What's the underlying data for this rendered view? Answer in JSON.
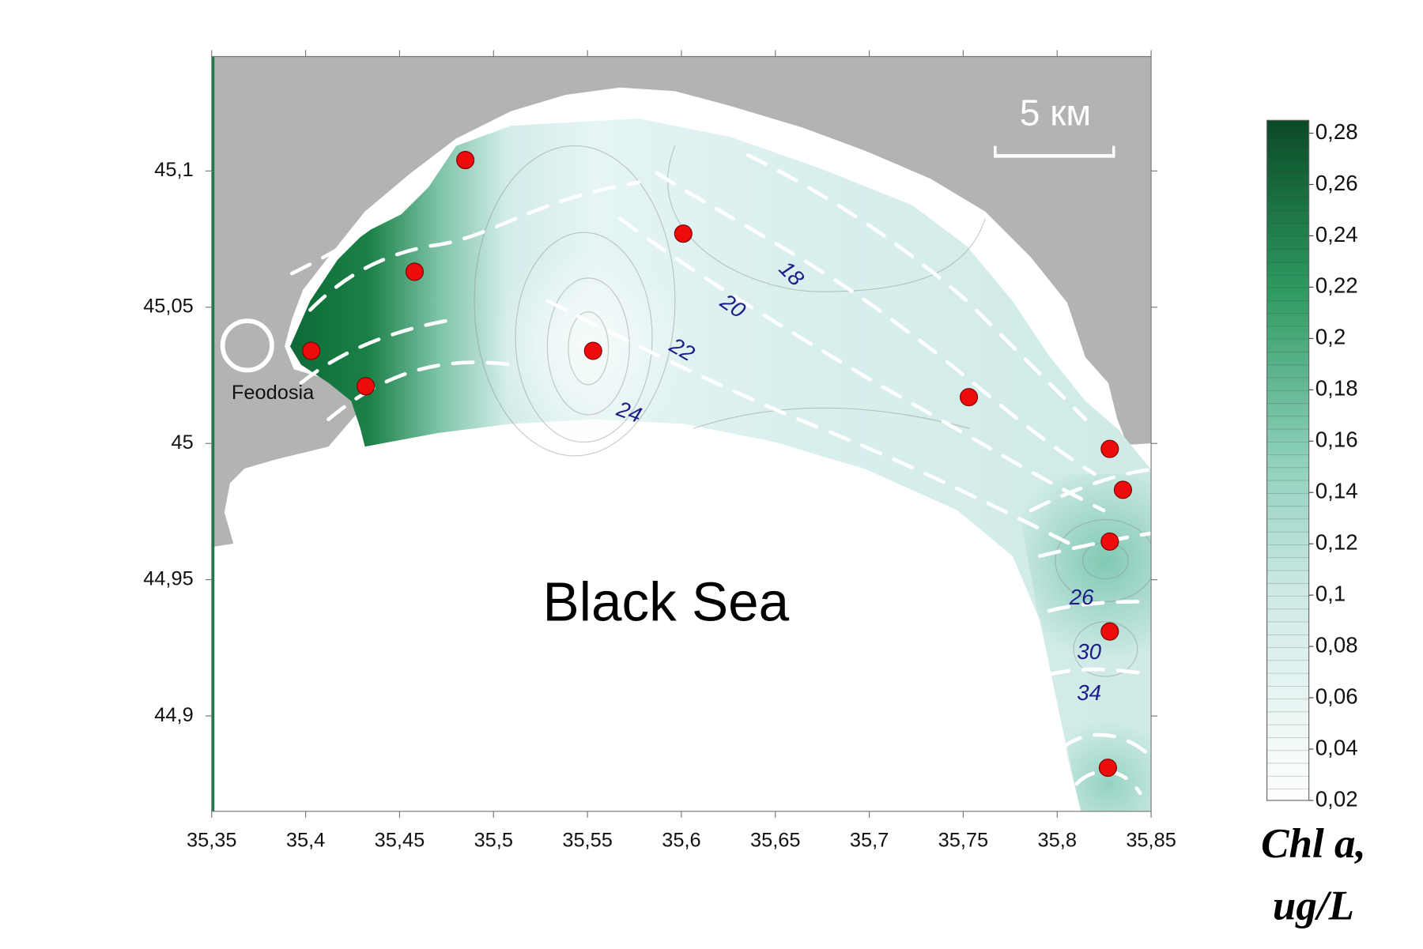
{
  "map": {
    "xlim": [
      35.35,
      35.85
    ],
    "ylim": [
      44.865,
      45.142
    ],
    "xticks": [
      {
        "value": 35.35,
        "label": "35,35"
      },
      {
        "value": 35.4,
        "label": "35,4"
      },
      {
        "value": 35.45,
        "label": "35,45"
      },
      {
        "value": 35.5,
        "label": "35,5"
      },
      {
        "value": 35.55,
        "label": "35,55"
      },
      {
        "value": 35.6,
        "label": "35,6"
      },
      {
        "value": 35.65,
        "label": "35,65"
      },
      {
        "value": 35.7,
        "label": "35,7"
      },
      {
        "value": 35.75,
        "label": "35,75"
      },
      {
        "value": 35.8,
        "label": "35,8"
      },
      {
        "value": 35.85,
        "label": "35,85"
      }
    ],
    "yticks": [
      {
        "value": 44.9,
        "label": "44,9"
      },
      {
        "value": 44.95,
        "label": "44,95"
      },
      45,
      {
        "value": 45.05,
        "label": "45,05"
      },
      {
        "value": 45.1,
        "label": "45,1"
      }
    ],
    "stations": {
      "lon": [
        35.485,
        35.601,
        35.458,
        35.403,
        35.432,
        35.553,
        35.753,
        35.828,
        35.835,
        35.828,
        35.828,
        35.827
      ],
      "lat": [
        45.104,
        45.077,
        45.063,
        45.034,
        45.021,
        45.034,
        45.017,
        44.998,
        44.983,
        44.964,
        44.931,
        44.881
      ]
    },
    "contour_labels": [
      {
        "value": 18,
        "lon": 35.658,
        "lat": 45.062
      },
      {
        "value": 20,
        "lon": 35.627,
        "lat": 45.05
      },
      {
        "value": 22,
        "lon": 35.6,
        "lat": 45.034
      },
      {
        "value": 24,
        "lon": 35.572,
        "lat": 45.011
      },
      {
        "value": 26,
        "lon": 35.813,
        "lat": 44.943
      },
      {
        "value": 30,
        "lon": 35.817,
        "lat": 44.923
      },
      {
        "value": 34,
        "lon": 35.817,
        "lat": 44.908
      }
    ],
    "scale_bar": "5 км",
    "city": "Feodosia",
    "sea": "Black Sea"
  },
  "colorbar": {
    "title": [
      "Chl a,",
      "ug/L"
    ],
    "lim": [
      0.02,
      0.285
    ],
    "ticks": [
      {
        "value": 0.02,
        "label": "0,02"
      },
      {
        "value": 0.04,
        "label": "0,04"
      },
      {
        "value": 0.06,
        "label": "0,06"
      },
      {
        "value": 0.08,
        "label": "0,08"
      },
      {
        "value": 0.1,
        "label": "0,1"
      },
      {
        "value": 0.12,
        "label": "0,12"
      },
      {
        "value": 0.14,
        "label": "0,14"
      },
      {
        "value": 0.16,
        "label": "0,16"
      },
      {
        "value": 0.18,
        "label": "0,18"
      },
      {
        "value": 0.2,
        "label": "0,2"
      },
      {
        "value": 0.22,
        "label": "0,22"
      },
      {
        "value": 0.24,
        "label": "0,24"
      },
      {
        "value": 0.26,
        "label": "0,26"
      },
      {
        "value": 0.28,
        "label": "0,28"
      }
    ]
  }
}
